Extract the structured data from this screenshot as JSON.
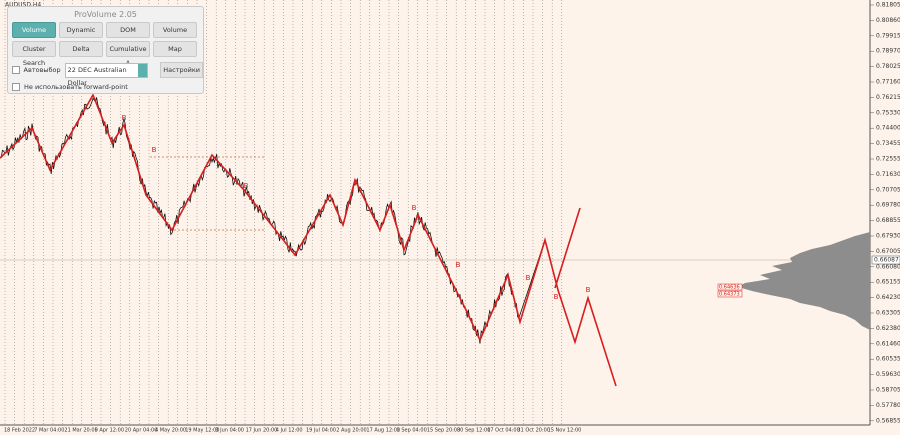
{
  "window": {
    "symbol": "AUDUSD,H4"
  },
  "panel": {
    "title": "ProVolume 2.05",
    "buttons": [
      "Volume Profile",
      "Dynamic POC",
      "DOM",
      "Volume",
      "Cluster Search",
      "Delta",
      "Cumulative Δ",
      "Map"
    ],
    "auto_select": "Автовыбор",
    "instrument": "22 DEC Australian Dollar",
    "settings": "Настройки",
    "forward_point": "Не использовать forward-point"
  },
  "price_axis": {
    "labels": [
      "0.81805",
      "0.80860",
      "0.79915",
      "0.78970",
      "0.78025",
      "0.77160",
      "0.76215",
      "0.75330",
      "0.74400",
      "0.73455",
      "0.72555",
      "0.71630",
      "0.70705",
      "0.69780",
      "0.68855",
      "0.67930",
      "0.67005",
      "0.66080",
      "0.65155",
      "0.64230",
      "0.63305",
      "0.62380",
      "0.61460",
      "0.60535",
      "0.59630",
      "0.58705",
      "0.57780",
      "0.56855"
    ],
    "current": "0.66087",
    "levels": [
      "0.64636",
      "0.64373"
    ]
  },
  "time_axis": {
    "labels": [
      "18 Feb 2022",
      "7 Mar 04:00",
      "21 Mar 20:00",
      "5 Apr 12:00",
      "20 Apr 04:00",
      "4 May 20:00",
      "19 May 12:00",
      "3 Jun 04:00",
      "17 Jun 20:00",
      "4 Jul 12:00",
      "19 Jul 04:00",
      "2 Aug 20:00",
      "17 Aug 12:00",
      "1 Sep 04:00",
      "15 Sep 20:00",
      "30 Sep 12:00",
      "17 Oct 04:00",
      "31 Oct 20:00",
      "15 Nov 12:00"
    ]
  },
  "annotations": [
    "B",
    "B",
    "B",
    "B",
    "B",
    "B",
    "B",
    "B"
  ]
}
